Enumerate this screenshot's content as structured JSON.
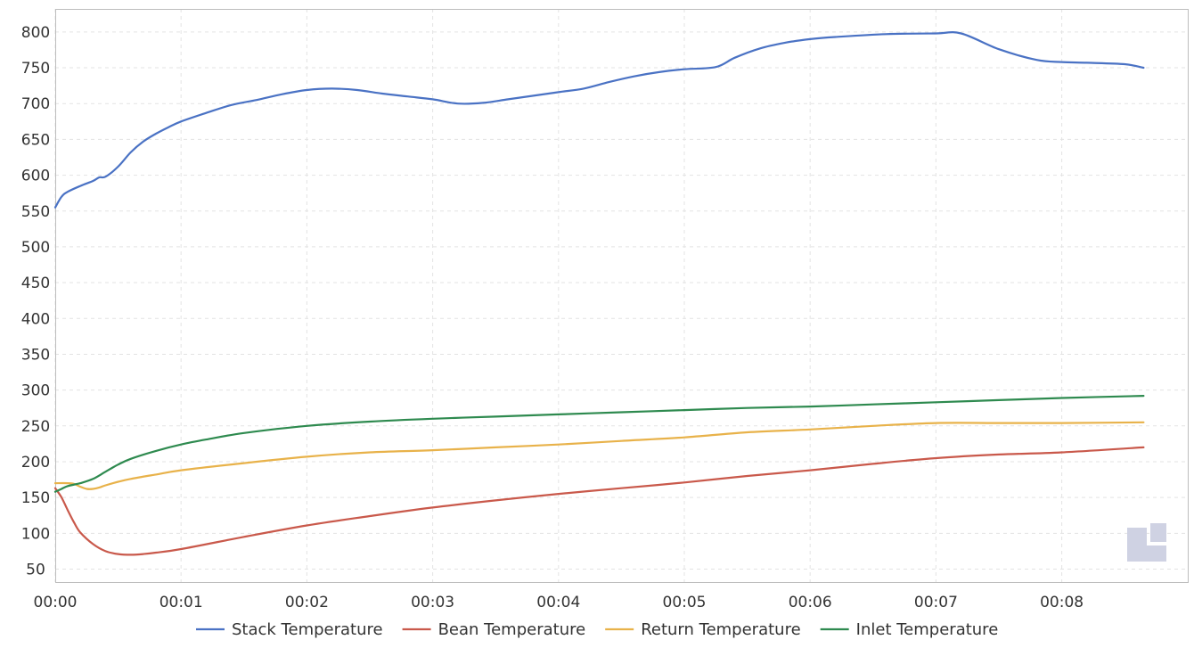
{
  "chart_data": {
    "type": "line",
    "title": "",
    "xlabel": "",
    "ylabel": "",
    "x_unit": "minutes",
    "xlim": [
      0,
      9.1
    ],
    "ylim": [
      40,
      805
    ],
    "grid": true,
    "legend_position": "bottom",
    "y_ticks": [
      50,
      100,
      150,
      200,
      250,
      300,
      350,
      400,
      450,
      500,
      550,
      600,
      650,
      700,
      750,
      800
    ],
    "x_ticks": [
      {
        "value": 0,
        "label": "00:00"
      },
      {
        "value": 1,
        "label": "00:01"
      },
      {
        "value": 2,
        "label": "00:02"
      },
      {
        "value": 3,
        "label": "00:03"
      },
      {
        "value": 4,
        "label": "00:04"
      },
      {
        "value": 5,
        "label": "00:05"
      },
      {
        "value": 6,
        "label": "00:06"
      },
      {
        "value": 7,
        "label": "00:07"
      },
      {
        "value": 8,
        "label": "00:08"
      }
    ],
    "series": [
      {
        "name": "Stack Temperature",
        "color": "#4a72c4",
        "x": [
          0,
          0.05,
          0.1,
          0.2,
          0.3,
          0.35,
          0.4,
          0.5,
          0.6,
          0.7,
          0.8,
          0.9,
          1.0,
          1.2,
          1.4,
          1.6,
          1.8,
          2.0,
          2.2,
          2.4,
          2.6,
          2.8,
          3.0,
          3.2,
          3.4,
          3.6,
          3.8,
          4.0,
          4.2,
          4.4,
          4.6,
          4.8,
          5.0,
          5.25,
          5.4,
          5.6,
          5.8,
          6.0,
          6.2,
          6.6,
          7.0,
          7.2,
          7.5,
          7.8,
          8.0,
          8.2,
          8.5,
          8.65
        ],
        "values": [
          555,
          570,
          577,
          585,
          592,
          597,
          598,
          612,
          632,
          647,
          658,
          667,
          675,
          687,
          698,
          705,
          713,
          719,
          721,
          719,
          714,
          710,
          706,
          700,
          701,
          706,
          711,
          716,
          721,
          730,
          738,
          744,
          748,
          751,
          764,
          777,
          785,
          790,
          793,
          797,
          798,
          798,
          776,
          761,
          758,
          757,
          755,
          750
        ]
      },
      {
        "name": "Bean Temperature",
        "color": "#c9594b",
        "x": [
          0,
          0.05,
          0.1,
          0.15,
          0.2,
          0.3,
          0.4,
          0.5,
          0.6,
          0.7,
          0.8,
          1.0,
          1.5,
          2.0,
          2.5,
          3.0,
          3.5,
          4.0,
          4.5,
          5.0,
          5.5,
          6.0,
          6.5,
          7.0,
          7.5,
          8.0,
          8.65
        ],
        "values": [
          163,
          150,
          132,
          115,
          101,
          85,
          75,
          71,
          70,
          71,
          73,
          78,
          95,
          111,
          124,
          136,
          146,
          155,
          163,
          171,
          180,
          188,
          197,
          205,
          210,
          213,
          220
        ]
      },
      {
        "name": "Return Temperature",
        "color": "#e8b24a",
        "x": [
          0,
          0.1,
          0.15,
          0.2,
          0.25,
          0.3,
          0.35,
          0.4,
          0.5,
          0.6,
          0.8,
          1.0,
          1.5,
          2.0,
          2.5,
          3.0,
          3.5,
          4.0,
          4.5,
          5.0,
          5.5,
          6.0,
          6.5,
          7.0,
          7.5,
          8.0,
          8.65
        ],
        "values": [
          170,
          170,
          169,
          165,
          162,
          162,
          164,
          167,
          172,
          176,
          182,
          188,
          198,
          207,
          213,
          216,
          220,
          224,
          229,
          234,
          241,
          245,
          250,
          254,
          254,
          254,
          255
        ]
      },
      {
        "name": "Inlet Temperature",
        "color": "#2e8a4f",
        "x": [
          0,
          0.05,
          0.1,
          0.2,
          0.3,
          0.4,
          0.5,
          0.6,
          0.8,
          1.0,
          1.2,
          1.5,
          2.0,
          2.5,
          3.0,
          3.5,
          4.0,
          4.5,
          5.0,
          5.5,
          6.0,
          6.5,
          7.0,
          7.5,
          8.0,
          8.65
        ],
        "values": [
          158,
          162,
          166,
          170,
          176,
          186,
          196,
          204,
          215,
          224,
          231,
          240,
          250,
          256,
          260,
          263,
          266,
          269,
          272,
          275,
          277,
          280,
          283,
          286,
          289,
          292
        ]
      }
    ]
  }
}
